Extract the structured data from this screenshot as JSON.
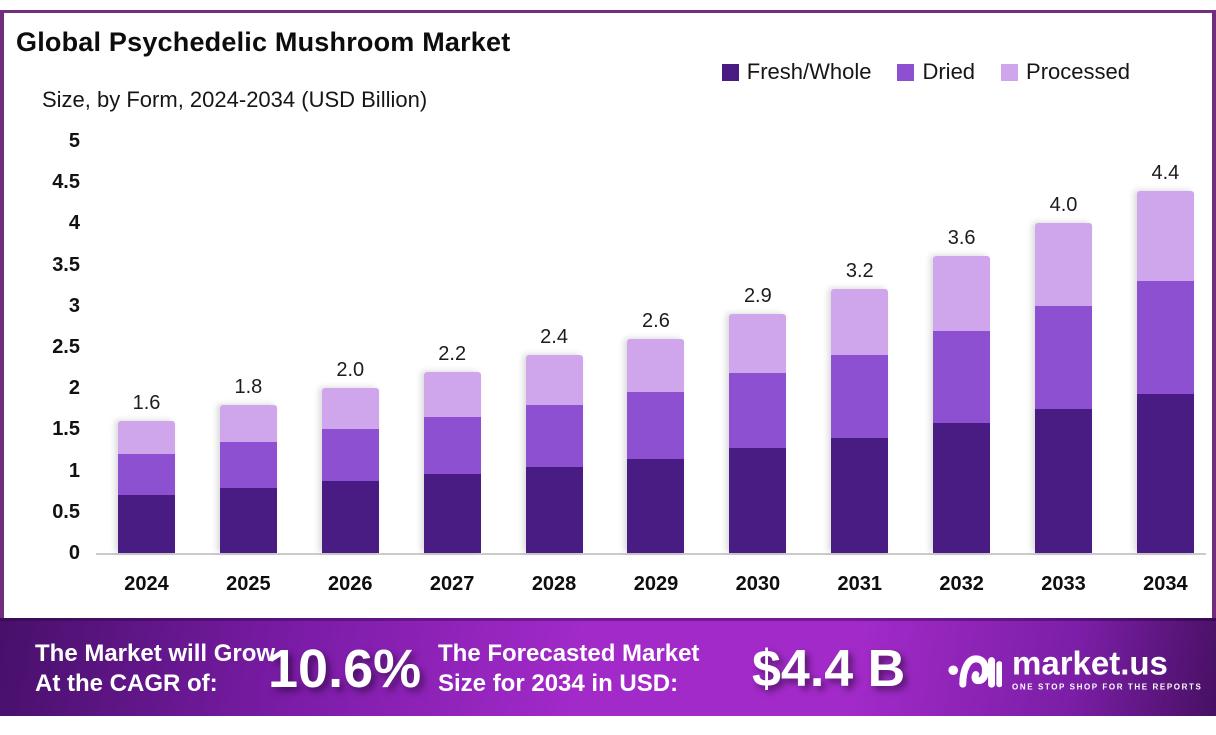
{
  "header": {
    "title": "Global Psychedelic Mushroom Market",
    "subtitle": "Size, by Form, 2024-2034 (USD Billion)"
  },
  "legend": [
    {
      "label": "Fresh/Whole",
      "color": "#481c82"
    },
    {
      "label": "Dried",
      "color": "#8c50d0"
    },
    {
      "label": "Processed",
      "color": "#cfa5ec"
    }
  ],
  "chart_data": {
    "type": "bar",
    "stacked": true,
    "title": "Global Psychedelic Mushroom Market Size, by Form, 2024-2034 (USD Billion)",
    "categories": [
      "2024",
      "2025",
      "2026",
      "2027",
      "2028",
      "2029",
      "2030",
      "2031",
      "2032",
      "2033",
      "2034"
    ],
    "series": [
      {
        "name": "Fresh/Whole",
        "color": "#481c82",
        "values": [
          0.7,
          0.79,
          0.88,
          0.96,
          1.05,
          1.14,
          1.27,
          1.4,
          1.58,
          1.75,
          1.93
        ]
      },
      {
        "name": "Dried",
        "color": "#8c50d0",
        "values": [
          0.5,
          0.56,
          0.62,
          0.69,
          0.75,
          0.81,
          0.91,
          1.0,
          1.12,
          1.25,
          1.37
        ]
      },
      {
        "name": "Processed",
        "color": "#cfa5ec",
        "values": [
          0.4,
          0.45,
          0.5,
          0.55,
          0.6,
          0.65,
          0.72,
          0.8,
          0.9,
          1.0,
          1.1
        ]
      }
    ],
    "totals": [
      "1.6",
      "1.8",
      "2.0",
      "2.2",
      "2.4",
      "2.6",
      "2.9",
      "3.2",
      "3.6",
      "4.0",
      "4.4"
    ],
    "ylim": [
      0,
      5
    ],
    "y_ticks": [
      "5",
      "4.5",
      "4",
      "3.5",
      "3",
      "2.5",
      "2",
      "1.5",
      "1",
      "0.5",
      "0"
    ],
    "grid": false,
    "legend_position": "top-right"
  },
  "banner": {
    "cagr_label_line1": "The Market will Grow",
    "cagr_label_line2": "At the CAGR of:",
    "cagr_value": "10.6%",
    "forecast_label_line1": "The Forecasted Market",
    "forecast_label_line2": "Size for 2034 in USD:",
    "forecast_value": "$4.4 B",
    "brand": {
      "name": "market.us",
      "tagline": "ONE STOP SHOP FOR THE REPORTS"
    }
  },
  "colors": {
    "bar_dark": "#481c82",
    "bar_mid": "#8c50d0",
    "bar_light": "#cfa5ec",
    "card_border": "#702e7d",
    "axis_line": "#cbcbcb",
    "banner_gradient_left": "#47106a",
    "banner_gradient_mid": "#a22ac9",
    "banner_gradient_right": "#471063",
    "banner_text": "#ffffff",
    "chart_text": "#111111"
  }
}
